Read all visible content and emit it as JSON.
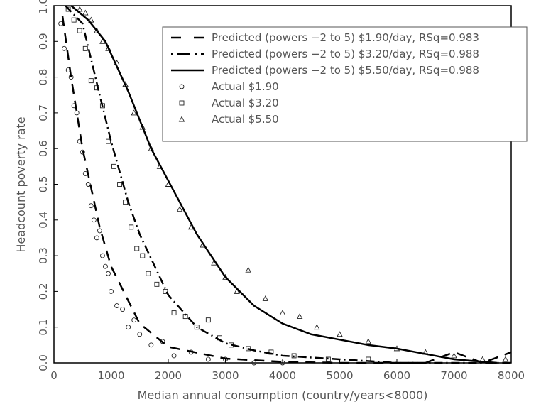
{
  "chart_data": {
    "type": "scatter",
    "xlabel": "Median annual consumption (country/years<8000)",
    "ylabel": "Headcount poverty rate",
    "xlim": [
      0,
      8000
    ],
    "ylim": [
      0,
      1
    ],
    "xticks": [
      "0",
      "1000",
      "2000",
      "3000",
      "4000",
      "5000",
      "6000",
      "7000",
      "8000"
    ],
    "yticks": [
      "0.0",
      "0.1",
      "0.2",
      "0.3",
      "0.4",
      "0.5",
      "0.6",
      "0.7",
      "0.8",
      "0.9",
      "1.0"
    ],
    "grid": false,
    "legend_placement": "top-right",
    "lines": [
      {
        "name": "Predicted (powers −2 to 5) $1.90/day, RSq=0.983",
        "style": "dashed",
        "x": [
          150,
          300,
          500,
          800,
          1000,
          1500,
          2000,
          3000,
          4000,
          5000,
          6500,
          7000,
          7500,
          8000
        ],
        "y": [
          0.97,
          0.8,
          0.6,
          0.38,
          0.27,
          0.11,
          0.045,
          0.012,
          0.003,
          0,
          0,
          0.03,
          0,
          0.03
        ]
      },
      {
        "name": "Predicted (powers −2 to 5) $3.20/day, RSq=0.988",
        "style": "dash-dot",
        "x": [
          200,
          500,
          800,
          1000,
          1300,
          1500,
          2000,
          2500,
          3000,
          3500,
          4000,
          5000,
          6000,
          8000
        ],
        "y": [
          1.0,
          0.95,
          0.75,
          0.62,
          0.45,
          0.36,
          0.19,
          0.1,
          0.055,
          0.035,
          0.02,
          0.01,
          0.0,
          0.0
        ]
      },
      {
        "name": "Predicted (powers −2 to 5) $5.50/day, RSq=0.988",
        "style": "solid",
        "x": [
          300,
          600,
          900,
          1300,
          1700,
          2000,
          2500,
          3000,
          3500,
          4000,
          4500,
          5000,
          5500,
          6000,
          6500,
          7000,
          7750
        ],
        "y": [
          1.0,
          0.96,
          0.9,
          0.76,
          0.6,
          0.51,
          0.36,
          0.24,
          0.16,
          0.11,
          0.08,
          0.065,
          0.05,
          0.04,
          0.025,
          0.01,
          0.0
        ]
      }
    ],
    "series": [
      {
        "name": "Actual $1.90",
        "marker": "circle",
        "x": [
          120,
          180,
          250,
          300,
          350,
          400,
          450,
          500,
          550,
          600,
          650,
          700,
          750,
          800,
          850,
          900,
          950,
          1000,
          1100,
          1200,
          1300,
          1400,
          1500,
          1700,
          1900,
          2100,
          2400,
          2700,
          3000,
          3500,
          4000
        ],
        "y": [
          0.95,
          0.88,
          0.82,
          0.8,
          0.72,
          0.7,
          0.62,
          0.59,
          0.53,
          0.5,
          0.44,
          0.4,
          0.35,
          0.37,
          0.3,
          0.27,
          0.25,
          0.2,
          0.16,
          0.15,
          0.1,
          0.12,
          0.08,
          0.05,
          0.06,
          0.02,
          0.03,
          0.01,
          0.01,
          0,
          0
        ]
      },
      {
        "name": "Actual $3.20",
        "marker": "square",
        "x": [
          250,
          350,
          450,
          550,
          650,
          750,
          850,
          950,
          1050,
          1150,
          1250,
          1350,
          1450,
          1550,
          1650,
          1800,
          1950,
          2100,
          2300,
          2500,
          2700,
          2900,
          3100,
          3400,
          3800,
          4200,
          4800,
          5500
        ],
        "y": [
          0.99,
          0.96,
          0.93,
          0.88,
          0.79,
          0.77,
          0.72,
          0.62,
          0.55,
          0.5,
          0.45,
          0.38,
          0.32,
          0.3,
          0.25,
          0.22,
          0.2,
          0.14,
          0.13,
          0.1,
          0.12,
          0.07,
          0.05,
          0.04,
          0.03,
          0.02,
          0.01,
          0.01
        ]
      },
      {
        "name": "Actual $5.50",
        "marker": "triangle",
        "x": [
          450,
          550,
          650,
          750,
          850,
          950,
          1100,
          1250,
          1400,
          1550,
          1700,
          1850,
          2000,
          2200,
          2400,
          2600,
          2800,
          3000,
          3200,
          3400,
          3700,
          4000,
          4300,
          4600,
          5000,
          5500,
          6000,
          6500,
          7000,
          7500,
          7900
        ],
        "y": [
          0.99,
          0.98,
          0.96,
          0.93,
          0.9,
          0.88,
          0.84,
          0.78,
          0.7,
          0.66,
          0.6,
          0.55,
          0.5,
          0.43,
          0.38,
          0.33,
          0.28,
          0.24,
          0.2,
          0.26,
          0.18,
          0.14,
          0.13,
          0.1,
          0.08,
          0.06,
          0.04,
          0.03,
          0.02,
          0.01,
          0.01
        ]
      }
    ]
  }
}
